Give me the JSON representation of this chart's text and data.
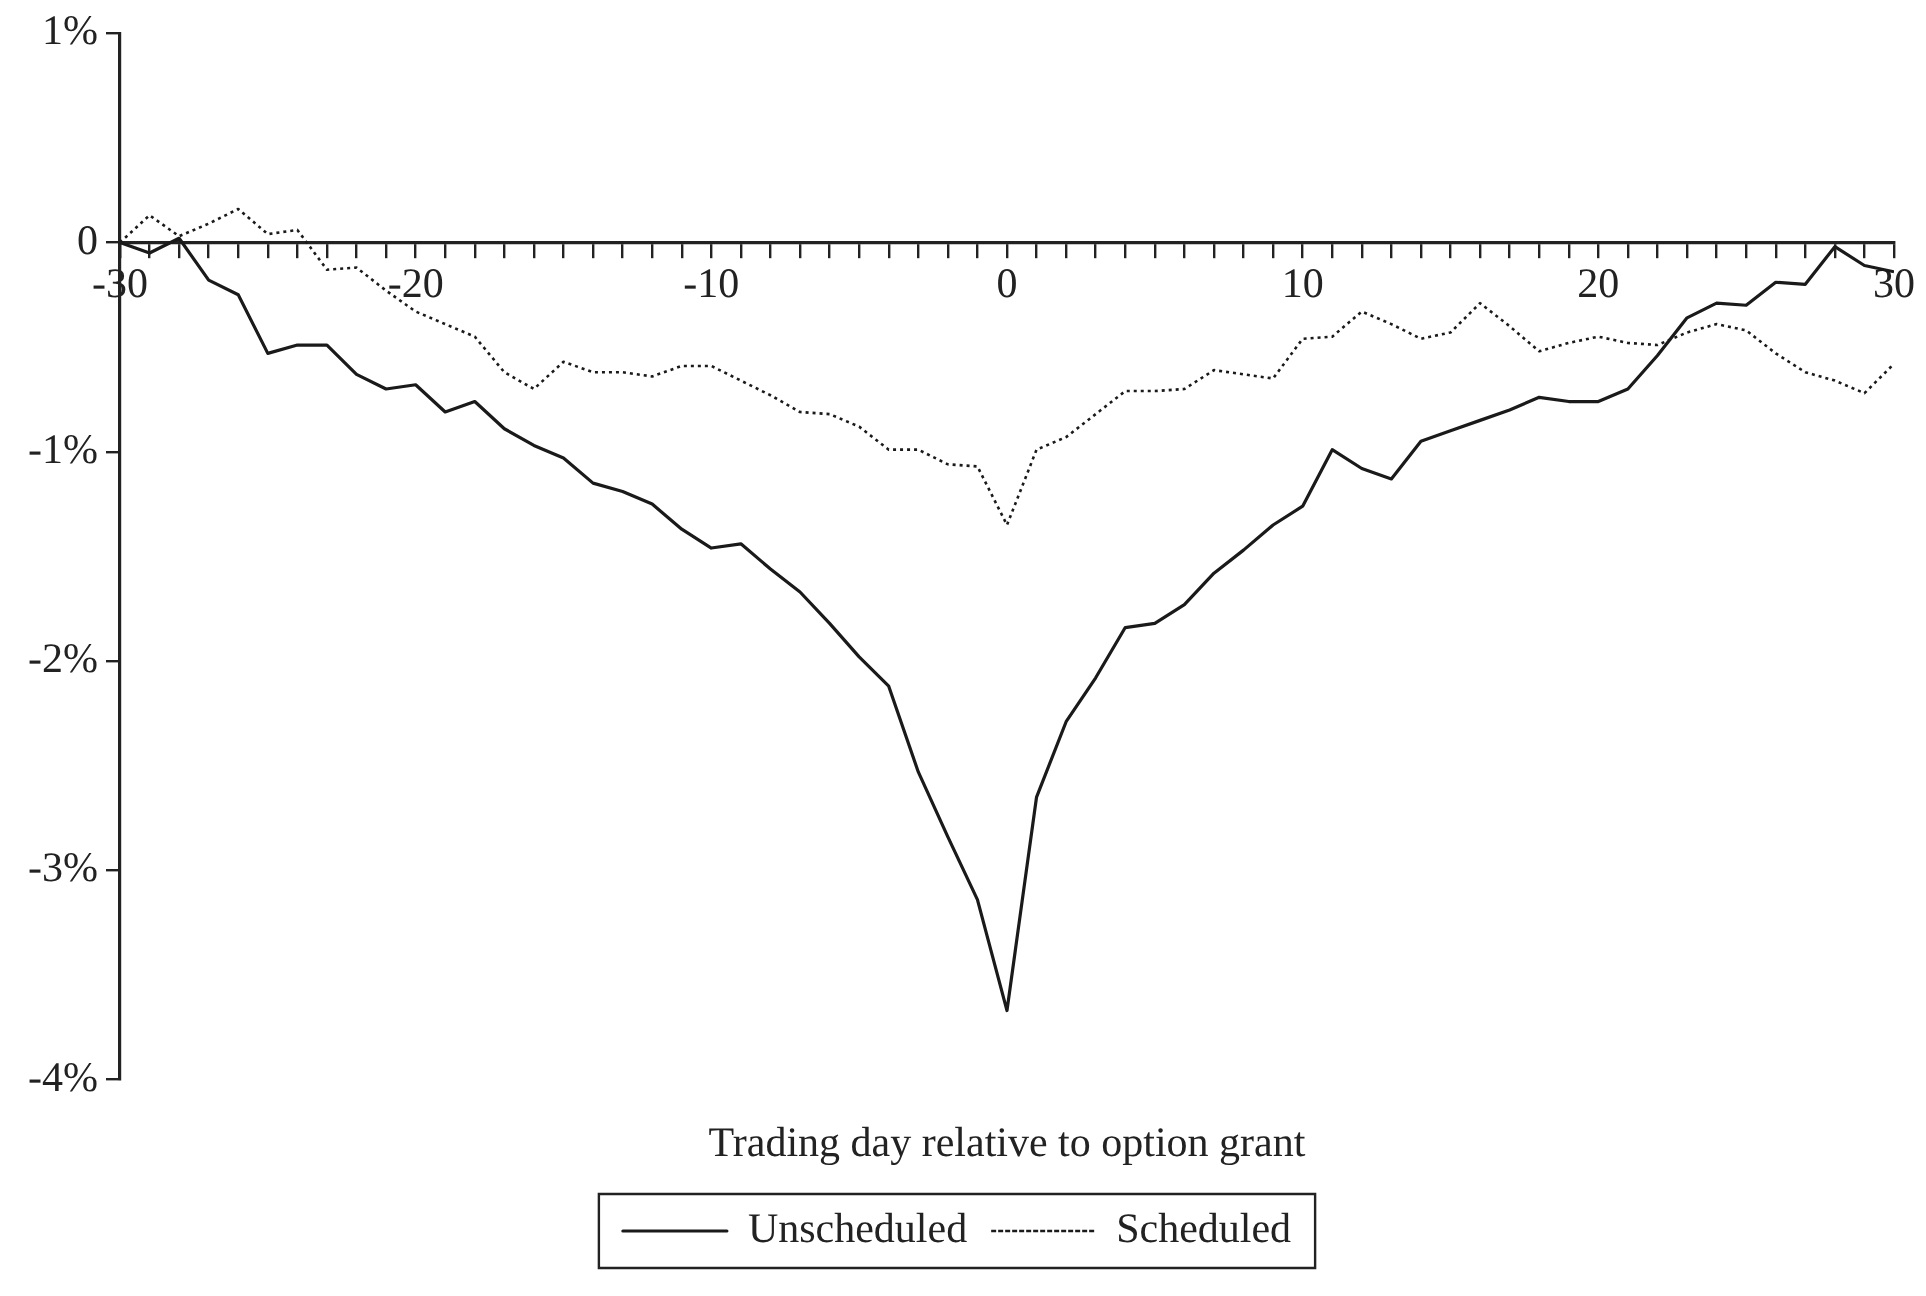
{
  "chart_data": {
    "type": "line",
    "xlabel": "Trading day relative to option grant",
    "x": [
      -30,
      -29,
      -28,
      -27,
      -26,
      -25,
      -24,
      -23,
      -22,
      -21,
      -20,
      -19,
      -18,
      -17,
      -16,
      -15,
      -14,
      -13,
      -12,
      -11,
      -10,
      -9,
      -8,
      -7,
      -6,
      -5,
      -4,
      -3,
      -2,
      -1,
      0,
      1,
      2,
      3,
      4,
      5,
      6,
      7,
      8,
      9,
      10,
      11,
      12,
      13,
      14,
      15,
      16,
      17,
      18,
      19,
      20,
      21,
      22,
      23,
      24,
      25,
      26,
      27,
      28,
      29,
      30
    ],
    "series": [
      {
        "name": "Unscheduled",
        "color": "#1a1a1a",
        "line_style": "solid",
        "values": [
          0,
          -0.05,
          0.02,
          -0.18,
          -0.25,
          -0.53,
          -0.49,
          -0.49,
          -0.63,
          -0.7,
          -0.68,
          -0.81,
          -0.76,
          -0.89,
          -0.97,
          -1.03,
          -1.15,
          -1.19,
          -1.25,
          -1.37,
          -1.46,
          -1.44,
          -1.56,
          -1.67,
          -1.82,
          -1.98,
          -2.12,
          -2.53,
          -2.84,
          -3.14,
          -3.67,
          -2.65,
          -2.29,
          -2.08,
          -1.84,
          -1.82,
          -1.73,
          -1.58,
          -1.47,
          -1.35,
          -1.26,
          -0.99,
          -1.08,
          -1.13,
          -0.95,
          -0.9,
          -0.85,
          -0.8,
          -0.74,
          -0.76,
          -0.76,
          -0.7,
          -0.54,
          -0.36,
          -0.29,
          -0.3,
          -0.19,
          -0.2,
          -0.02,
          -0.11,
          -0.14
        ]
      },
      {
        "name": "Scheduled",
        "color": "#1a1a1a",
        "line_style": "dotted",
        "values": [
          0,
          0.13,
          0.03,
          0.09,
          0.16,
          0.04,
          0.06,
          -0.13,
          -0.12,
          -0.23,
          -0.33,
          -0.39,
          -0.45,
          -0.62,
          -0.7,
          -0.57,
          -0.62,
          -0.62,
          -0.64,
          -0.59,
          -0.59,
          -0.66,
          -0.73,
          -0.81,
          -0.82,
          -0.88,
          -0.99,
          -0.99,
          -1.06,
          -1.07,
          -1.35,
          -0.99,
          -0.93,
          -0.82,
          -0.71,
          -0.71,
          -0.7,
          -0.61,
          -0.63,
          -0.65,
          -0.46,
          -0.45,
          -0.33,
          -0.39,
          -0.46,
          -0.43,
          -0.29,
          -0.4,
          -0.52,
          -0.48,
          -0.45,
          -0.48,
          -0.49,
          -0.43,
          -0.39,
          -0.42,
          -0.53,
          -0.62,
          -0.66,
          -0.72,
          -0.58
        ]
      }
    ],
    "xlim": [
      -30,
      30
    ],
    "xticks": [
      -30,
      {
        "value": -29,
        "label": null
      },
      {
        "value": -28,
        "label": null
      },
      {
        "value": -27,
        "label": null
      },
      {
        "value": -26,
        "label": null
      },
      {
        "value": -25,
        "label": null
      },
      {
        "value": -24,
        "label": null
      },
      {
        "value": -23,
        "label": null
      },
      {
        "value": -22,
        "label": null
      },
      {
        "value": -21,
        "label": null
      },
      -20,
      {
        "value": -19,
        "label": null
      },
      {
        "value": -18,
        "label": null
      },
      {
        "value": -17,
        "label": null
      },
      {
        "value": -16,
        "label": null
      },
      {
        "value": -15,
        "label": null
      },
      {
        "value": -14,
        "label": null
      },
      {
        "value": -13,
        "label": null
      },
      {
        "value": -12,
        "label": null
      },
      {
        "value": -11,
        "label": null
      },
      -10,
      {
        "value": -9,
        "label": null
      },
      {
        "value": -8,
        "label": null
      },
      {
        "value": -7,
        "label": null
      },
      {
        "value": -6,
        "label": null
      },
      {
        "value": -5,
        "label": null
      },
      {
        "value": -4,
        "label": null
      },
      {
        "value": -3,
        "label": null
      },
      {
        "value": -2,
        "label": null
      },
      {
        "value": -1,
        "label": null
      },
      0,
      {
        "value": 1,
        "label": null
      },
      {
        "value": 2,
        "label": null
      },
      {
        "value": 3,
        "label": null
      },
      {
        "value": 4,
        "label": null
      },
      {
        "value": 5,
        "label": null
      },
      {
        "value": 6,
        "label": null
      },
      {
        "value": 7,
        "label": null
      },
      {
        "value": 8,
        "label": null
      },
      {
        "value": 9,
        "label": null
      },
      10,
      {
        "value": 11,
        "label": null
      },
      {
        "value": 12,
        "label": null
      },
      {
        "value": 13,
        "label": null
      },
      {
        "value": 14,
        "label": null
      },
      {
        "value": 15,
        "label": null
      },
      {
        "value": 16,
        "label": null
      },
      {
        "value": 17,
        "label": null
      },
      {
        "value": 18,
        "label": null
      },
      {
        "value": 19,
        "label": null
      },
      20,
      {
        "value": 21,
        "label": null
      },
      {
        "value": 22,
        "label": null
      },
      {
        "value": 23,
        "label": null
      },
      {
        "value": 24,
        "label": null
      },
      {
        "value": 25,
        "label": null
      },
      {
        "value": 26,
        "label": null
      },
      {
        "value": 27,
        "label": null
      },
      {
        "value": 28,
        "label": null
      },
      {
        "value": 29,
        "label": null
      },
      30
    ],
    "ylim": [
      -4,
      1
    ],
    "yticks": [
      {
        "value": 1,
        "label": "1%"
      },
      0,
      {
        "value": -1,
        "label": "-1%"
      },
      {
        "value": -2,
        "label": "-2%"
      },
      {
        "value": -3,
        "label": "-3%"
      },
      {
        "value": -4,
        "label": "-4%"
      }
    ],
    "grid": false,
    "legend": "bottom",
    "marker": "none"
  }
}
